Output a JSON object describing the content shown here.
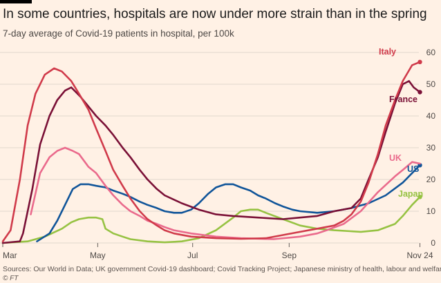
{
  "header": {
    "title": "In some countries, hospitals are now under more strain than in the spring",
    "subtitle": "7-day average of Covid-19 patients in hospital, per 100k"
  },
  "footer": {
    "source": "Sources: Our World in Data; UK government Covid-19 dashboard; Covid Tracking Project; Japanese ministry of health, labour and welfare",
    "copyright": "© FT"
  },
  "colors": {
    "background": "#fff1e5",
    "grid": "#e1d7cd",
    "Italy": "#d03a4a",
    "France": "#7a1036",
    "UK": "#ea6a8c",
    "US": "#0f5499",
    "Japan": "#96c242"
  },
  "chart_data": {
    "type": "line",
    "title": "In some countries, hospitals are now under more strain than in the spring",
    "subtitle": "7-day average of Covid-19 patients in hospital, per 100k",
    "x_axis": {
      "type": "date",
      "range": [
        "2020-03-01",
        "2020-11-26"
      ],
      "ticks": [
        {
          "date": "2020-03-01",
          "label": "Mar"
        },
        {
          "date": "2020-05-01",
          "label": "May"
        },
        {
          "date": "2020-07-01",
          "label": "Jul"
        },
        {
          "date": "2020-09-01",
          "label": "Sep"
        },
        {
          "date": "2020-11-24",
          "label": "Nov 24"
        }
      ]
    },
    "y_axis": {
      "ylim": [
        0,
        60
      ],
      "ticks": [
        0,
        10,
        20,
        30,
        40,
        50,
        60
      ],
      "position": "right"
    },
    "grid": true,
    "legend": "inline labels at line ends",
    "series": [
      {
        "name": "Italy",
        "end_marker": true,
        "points": [
          [
            "2020-03-01",
            0.5
          ],
          [
            "2020-03-06",
            4
          ],
          [
            "2020-03-12",
            20
          ],
          [
            "2020-03-17",
            37
          ],
          [
            "2020-03-22",
            47
          ],
          [
            "2020-03-28",
            53
          ],
          [
            "2020-04-03",
            55
          ],
          [
            "2020-04-08",
            54
          ],
          [
            "2020-04-14",
            51
          ],
          [
            "2020-04-19",
            47
          ],
          [
            "2020-04-25",
            42
          ],
          [
            "2020-04-30",
            36
          ],
          [
            "2020-05-06",
            29
          ],
          [
            "2020-05-11",
            23
          ],
          [
            "2020-05-17",
            18
          ],
          [
            "2020-05-22",
            14
          ],
          [
            "2020-05-28",
            10
          ],
          [
            "2020-06-02",
            7.5
          ],
          [
            "2020-06-08",
            5.5
          ],
          [
            "2020-06-13",
            4
          ],
          [
            "2020-06-19",
            3
          ],
          [
            "2020-06-30",
            2
          ],
          [
            "2020-07-16",
            1.5
          ],
          [
            "2020-08-01",
            1.3
          ],
          [
            "2020-08-17",
            1.5
          ],
          [
            "2020-08-28",
            2.5
          ],
          [
            "2020-09-08",
            3.5
          ],
          [
            "2020-09-19",
            4.5
          ],
          [
            "2020-09-30",
            5.5
          ],
          [
            "2020-10-06",
            7
          ],
          [
            "2020-10-11",
            9
          ],
          [
            "2020-10-17",
            13
          ],
          [
            "2020-10-22",
            19
          ],
          [
            "2020-10-28",
            28
          ],
          [
            "2020-11-02",
            37
          ],
          [
            "2020-11-08",
            45
          ],
          [
            "2020-11-13",
            51
          ],
          [
            "2020-11-19",
            56
          ],
          [
            "2020-11-24",
            57
          ]
        ]
      },
      {
        "name": "France",
        "end_marker": true,
        "points": [
          [
            "2020-03-01",
            0
          ],
          [
            "2020-03-12",
            0.5
          ],
          [
            "2020-03-14",
            3
          ],
          [
            "2020-03-20",
            17
          ],
          [
            "2020-03-25",
            31
          ],
          [
            "2020-03-31",
            40
          ],
          [
            "2020-04-05",
            45
          ],
          [
            "2020-04-10",
            48
          ],
          [
            "2020-04-14",
            49
          ],
          [
            "2020-04-20",
            46
          ],
          [
            "2020-04-25",
            43
          ],
          [
            "2020-04-30",
            40
          ],
          [
            "2020-05-06",
            37
          ],
          [
            "2020-05-11",
            34
          ],
          [
            "2020-05-17",
            30
          ],
          [
            "2020-05-22",
            27
          ],
          [
            "2020-05-28",
            23
          ],
          [
            "2020-06-02",
            20
          ],
          [
            "2020-06-08",
            17
          ],
          [
            "2020-06-13",
            15
          ],
          [
            "2020-06-24",
            12.5
          ],
          [
            "2020-07-05",
            10.5
          ],
          [
            "2020-07-16",
            9
          ],
          [
            "2020-07-27",
            8.5
          ],
          [
            "2020-08-12",
            8
          ],
          [
            "2020-08-28",
            7.5
          ],
          [
            "2020-09-08",
            8
          ],
          [
            "2020-09-19",
            8.5
          ],
          [
            "2020-09-30",
            10
          ],
          [
            "2020-10-11",
            11
          ],
          [
            "2020-10-17",
            14
          ],
          [
            "2020-10-22",
            20
          ],
          [
            "2020-10-28",
            27
          ],
          [
            "2020-11-02",
            35
          ],
          [
            "2020-11-08",
            44
          ],
          [
            "2020-11-13",
            50
          ],
          [
            "2020-11-17",
            51
          ],
          [
            "2020-11-20",
            49
          ],
          [
            "2020-11-24",
            47.5
          ]
        ]
      },
      {
        "name": "UK",
        "end_marker": false,
        "points": [
          [
            "2020-03-19",
            9
          ],
          [
            "2020-03-25",
            22
          ],
          [
            "2020-03-31",
            27
          ],
          [
            "2020-04-05",
            29
          ],
          [
            "2020-04-10",
            30
          ],
          [
            "2020-04-15",
            29
          ],
          [
            "2020-04-19",
            28
          ],
          [
            "2020-04-25",
            24
          ],
          [
            "2020-04-30",
            22
          ],
          [
            "2020-05-06",
            18
          ],
          [
            "2020-05-11",
            15
          ],
          [
            "2020-05-17",
            12
          ],
          [
            "2020-05-22",
            10
          ],
          [
            "2020-05-28",
            8.5
          ],
          [
            "2020-06-02",
            7
          ],
          [
            "2020-06-08",
            6
          ],
          [
            "2020-06-13",
            5
          ],
          [
            "2020-06-19",
            4
          ],
          [
            "2020-06-30",
            3
          ],
          [
            "2020-07-16",
            2
          ],
          [
            "2020-08-01",
            1.5
          ],
          [
            "2020-08-22",
            1.2
          ],
          [
            "2020-09-08",
            2
          ],
          [
            "2020-09-19",
            3
          ],
          [
            "2020-09-25",
            4
          ],
          [
            "2020-10-06",
            6
          ],
          [
            "2020-10-17",
            10
          ],
          [
            "2020-10-28",
            16
          ],
          [
            "2020-11-08",
            21
          ],
          [
            "2020-11-13",
            23
          ],
          [
            "2020-11-19",
            25.5
          ],
          [
            "2020-11-24",
            25
          ]
        ]
      },
      {
        "name": "US",
        "end_marker": true,
        "points": [
          [
            "2020-03-23",
            0.5
          ],
          [
            "2020-03-31",
            3
          ],
          [
            "2020-04-05",
            7
          ],
          [
            "2020-04-10",
            12
          ],
          [
            "2020-04-15",
            17
          ],
          [
            "2020-04-20",
            18.5
          ],
          [
            "2020-04-25",
            18.5
          ],
          [
            "2020-04-30",
            18
          ],
          [
            "2020-05-06",
            17.5
          ],
          [
            "2020-05-11",
            16.5
          ],
          [
            "2020-05-17",
            15.5
          ],
          [
            "2020-05-22",
            14.5
          ],
          [
            "2020-05-28",
            13
          ],
          [
            "2020-06-02",
            12
          ],
          [
            "2020-06-08",
            11
          ],
          [
            "2020-06-13",
            10
          ],
          [
            "2020-06-19",
            9.5
          ],
          [
            "2020-06-24",
            9.5
          ],
          [
            "2020-06-30",
            10.5
          ],
          [
            "2020-07-05",
            12.5
          ],
          [
            "2020-07-11",
            15.5
          ],
          [
            "2020-07-16",
            17.5
          ],
          [
            "2020-07-22",
            18.5
          ],
          [
            "2020-07-27",
            18.5
          ],
          [
            "2020-08-01",
            17.5
          ],
          [
            "2020-08-07",
            16.5
          ],
          [
            "2020-08-12",
            15
          ],
          [
            "2020-08-17",
            14
          ],
          [
            "2020-08-23",
            12.5
          ],
          [
            "2020-08-28",
            11.5
          ],
          [
            "2020-09-03",
            10.5
          ],
          [
            "2020-09-08",
            10
          ],
          [
            "2020-09-19",
            9.5
          ],
          [
            "2020-09-30",
            10
          ],
          [
            "2020-10-11",
            11
          ],
          [
            "2020-10-22",
            12.5
          ],
          [
            "2020-11-02",
            15
          ],
          [
            "2020-11-13",
            19
          ],
          [
            "2020-11-19",
            22
          ],
          [
            "2020-11-24",
            24.5
          ]
        ]
      },
      {
        "name": "Japan",
        "end_marker": true,
        "points": [
          [
            "2020-03-01",
            0
          ],
          [
            "2020-03-17",
            0.5
          ],
          [
            "2020-03-28",
            2
          ],
          [
            "2020-04-08",
            4.5
          ],
          [
            "2020-04-14",
            6.5
          ],
          [
            "2020-04-19",
            7.5
          ],
          [
            "2020-04-25",
            8
          ],
          [
            "2020-04-30",
            8
          ],
          [
            "2020-05-04",
            7.5
          ],
          [
            "2020-05-06",
            4.5
          ],
          [
            "2020-05-11",
            3
          ],
          [
            "2020-05-17",
            2
          ],
          [
            "2020-05-22",
            1.2
          ],
          [
            "2020-06-02",
            0.5
          ],
          [
            "2020-06-13",
            0.2
          ],
          [
            "2020-06-24",
            0.5
          ],
          [
            "2020-07-05",
            1.5
          ],
          [
            "2020-07-16",
            4
          ],
          [
            "2020-07-27",
            8
          ],
          [
            "2020-08-01",
            10
          ],
          [
            "2020-08-07",
            10.5
          ],
          [
            "2020-08-12",
            10.5
          ],
          [
            "2020-08-17",
            9.5
          ],
          [
            "2020-08-28",
            7.5
          ],
          [
            "2020-09-08",
            5.5
          ],
          [
            "2020-09-19",
            4.5
          ],
          [
            "2020-09-30",
            4
          ],
          [
            "2020-10-17",
            3.5
          ],
          [
            "2020-10-28",
            4
          ],
          [
            "2020-11-08",
            6
          ],
          [
            "2020-11-13",
            8.5
          ],
          [
            "2020-11-19",
            12
          ],
          [
            "2020-11-24",
            14.5
          ]
        ]
      }
    ]
  }
}
